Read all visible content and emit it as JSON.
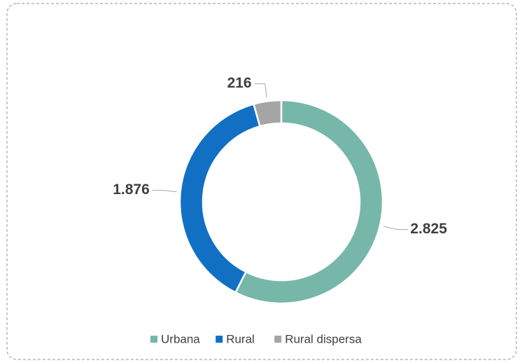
{
  "chart_data": {
    "type": "donut",
    "categories": [
      "Urbana",
      "Rural",
      "Rural dispersa"
    ],
    "values": [
      2825,
      1876,
      216
    ],
    "value_labels": [
      "2.825",
      "1.876",
      "216"
    ],
    "colors": [
      "#76b7aa",
      "#1170c4",
      "#a5a5a5"
    ],
    "legend": "bottom"
  }
}
